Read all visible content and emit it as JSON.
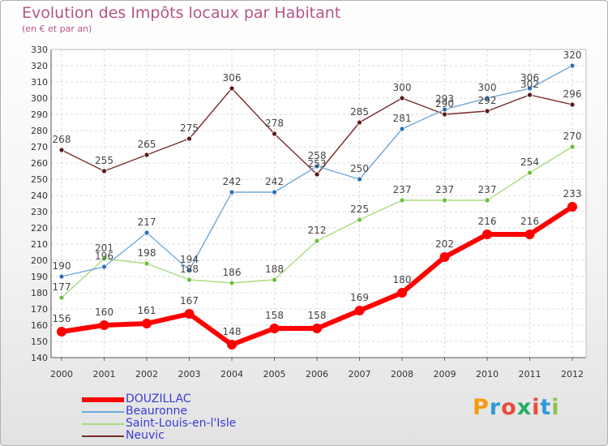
{
  "header": {
    "title": "Evolution des Impôts locaux par Habitant",
    "subtitle": "(en € et par an)"
  },
  "logo": {
    "text": "Proxiti",
    "colors": [
      "#f39c12",
      "#2e9bd6",
      "#e84c3d",
      "#27ae60",
      "#e84c3d",
      "#2e9bd6",
      "#8bc34a"
    ]
  },
  "chart_data": {
    "type": "line",
    "title": "Evolution des Impôts locaux par Habitant",
    "subtitle": "(en € et par an)",
    "xlabel": "",
    "ylabel": "",
    "x": [
      "2000",
      "2001",
      "2002",
      "2003",
      "2004",
      "2005",
      "2006",
      "2007",
      "2008",
      "2009",
      "2010",
      "2011",
      "2012"
    ],
    "ylim": [
      140,
      330
    ],
    "yticks": [
      140,
      150,
      160,
      170,
      180,
      190,
      200,
      210,
      220,
      230,
      240,
      250,
      260,
      270,
      280,
      290,
      300,
      310,
      320,
      330
    ],
    "grid": true,
    "legend_position": "bottom-left",
    "series": [
      {
        "name": "Neuvic",
        "color": "#7a2a2a",
        "marker_color": "#5a1a1a",
        "width": 1.4,
        "marker_r": 3,
        "values": [
          268,
          255,
          265,
          275,
          306,
          278,
          253,
          285,
          300,
          290,
          292,
          302,
          296
        ],
        "labels": [
          "268",
          "255",
          "265",
          "275",
          "306",
          "278",
          "253",
          "285",
          "300",
          "290",
          "292",
          "302",
          "296"
        ]
      },
      {
        "name": "Saint-Louis-en-l'Isle",
        "color": "#a9dc7e",
        "marker_color": "#6cbf3a",
        "width": 1.4,
        "marker_r": 3,
        "values": [
          177,
          201,
          198,
          188,
          186,
          188,
          212,
          225,
          237,
          237,
          237,
          254,
          270
        ],
        "labels": [
          "177",
          "201",
          "198",
          "188",
          "186",
          "188",
          "212",
          "225",
          "237",
          "237",
          "237",
          "254",
          "270"
        ]
      },
      {
        "name": "Beauronne",
        "color": "#6fa8dc",
        "marker_color": "#2f6fb5",
        "width": 1.4,
        "marker_r": 3,
        "values": [
          190,
          196,
          217,
          194,
          242,
          242,
          258,
          250,
          281,
          293,
          300,
          306,
          320
        ],
        "labels": [
          "190",
          "196",
          "217",
          "194",
          "242",
          "242",
          "258",
          "250",
          "281",
          "293",
          "300",
          "306",
          "320"
        ]
      },
      {
        "name": "DOUZILLAC",
        "color": "#ff0000",
        "marker_color": "#ff0000",
        "width": 6,
        "marker_r": 6,
        "values": [
          156,
          160,
          161,
          167,
          148,
          158,
          158,
          169,
          180,
          202,
          216,
          216,
          233
        ],
        "labels": [
          "156",
          "160",
          "161",
          "167",
          "148",
          "158",
          "158",
          "169",
          "180",
          "202",
          "216",
          "216",
          "233"
        ]
      }
    ],
    "legend": [
      {
        "name": "DOUZILLAC",
        "color": "#ff0000",
        "width": 6
      },
      {
        "name": "Beauronne",
        "color": "#6fa8dc",
        "width": 1.5
      },
      {
        "name": "Saint-Louis-en-l'Isle",
        "color": "#a9dc7e",
        "width": 1.5
      },
      {
        "name": "Neuvic",
        "color": "#7a2a2a",
        "width": 1.5
      }
    ]
  }
}
